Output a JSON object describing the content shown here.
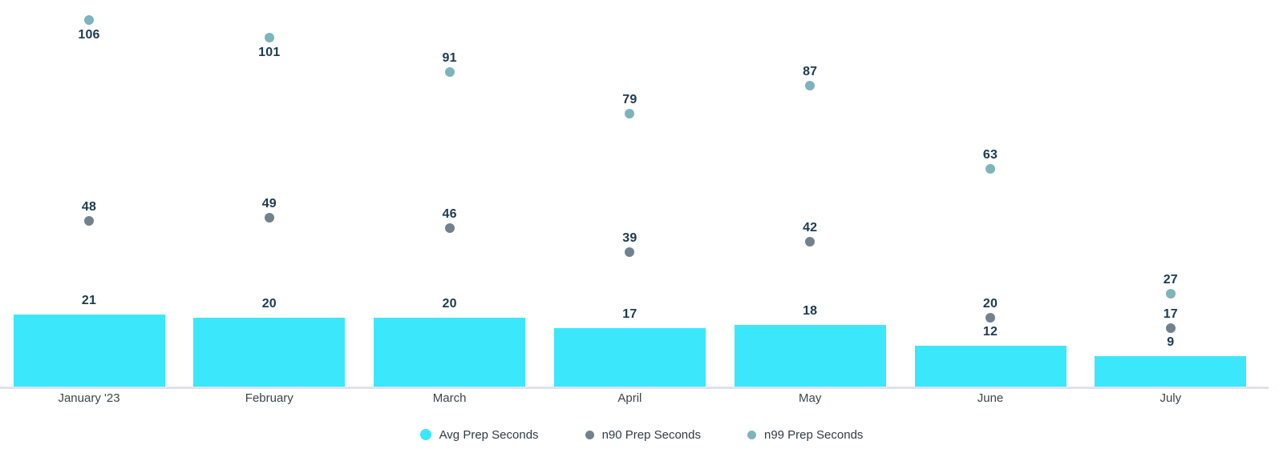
{
  "chart_data": {
    "type": "bar",
    "subtype": "bar-with-scatter-overlay",
    "title": "",
    "xlabel": "",
    "ylabel": "",
    "ylim": [
      0,
      110
    ],
    "grid": false,
    "legend_position": "bottom",
    "value_labels_shown": true,
    "categories": [
      "January '23",
      "February",
      "March",
      "April",
      "May",
      "June",
      "July"
    ],
    "series": [
      {
        "name": "Avg Prep Seconds",
        "type": "bar",
        "color": "#3be7fa",
        "values": [
          21,
          20,
          20,
          17,
          18,
          12,
          9
        ]
      },
      {
        "name": "n90 Prep Seconds",
        "type": "scatter",
        "color": "#71828d",
        "values": [
          48,
          49,
          46,
          39,
          42,
          20,
          17
        ]
      },
      {
        "name": "n99 Prep Seconds",
        "type": "scatter",
        "color": "#7db4be",
        "values": [
          106,
          101,
          91,
          79,
          87,
          63,
          27
        ]
      }
    ],
    "colors": {
      "value_label": "#1b3b50",
      "category_label": "#3a444e",
      "legend_label": "#303b44",
      "axis_line": "#dde2ef",
      "background": "#ffffff"
    }
  }
}
